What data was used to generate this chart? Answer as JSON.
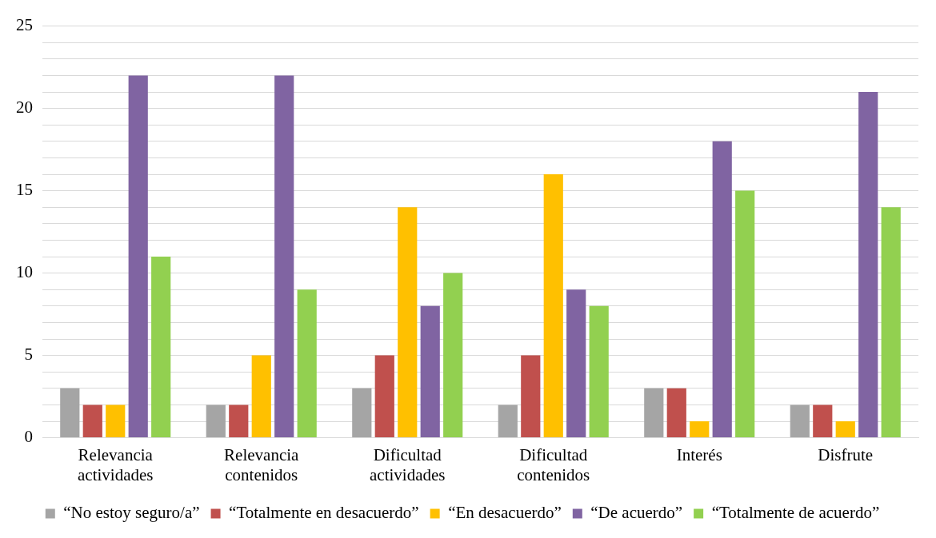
{
  "chart_data": {
    "type": "bar",
    "categories": [
      "Relevancia actividades",
      "Relevancia contenidos",
      "Dificultad actividades",
      "Dificultad contenidos",
      "Interés",
      "Disfrute"
    ],
    "series": [
      {
        "name": "“No estoy seguro/a”",
        "color": "#a5a5a5",
        "values": [
          3,
          2,
          3,
          2,
          3,
          2
        ]
      },
      {
        "name": "“Totalmente en desacuerdo”",
        "color": "#c0504d",
        "values": [
          2,
          2,
          5,
          5,
          3,
          2
        ]
      },
      {
        "name": "“En desacuerdo”",
        "color": "#ffc000",
        "values": [
          2,
          5,
          14,
          16,
          1,
          1
        ]
      },
      {
        "name": "“De acuerdo”",
        "color": "#8064a2",
        "values": [
          22,
          22,
          8,
          9,
          18,
          21
        ]
      },
      {
        "name": "“Totalmente de acuerdo”",
        "color": "#92d050",
        "values": [
          11,
          9,
          10,
          8,
          15,
          14
        ]
      }
    ],
    "ylim": [
      0,
      25
    ],
    "yticks": [
      0,
      {
        "value": 1,
        "label": null
      },
      {
        "value": 2,
        "label": null
      },
      {
        "value": 3,
        "label": null
      },
      {
        "value": 4,
        "label": null
      },
      5,
      {
        "value": 6,
        "label": null
      },
      {
        "value": 7,
        "label": null
      },
      {
        "value": 8,
        "label": null
      },
      {
        "value": 9,
        "label": null
      },
      10,
      {
        "value": 11,
        "label": null
      },
      {
        "value": 12,
        "label": null
      },
      {
        "value": 13,
        "label": null
      },
      {
        "value": 14,
        "label": null
      },
      15,
      {
        "value": 16,
        "label": null
      },
      {
        "value": 17,
        "label": null
      },
      {
        "value": 18,
        "label": null
      },
      {
        "value": 19,
        "label": null
      },
      20,
      {
        "value": 21,
        "label": null
      },
      {
        "value": 22,
        "label": null
      },
      {
        "value": 23,
        "label": null
      },
      {
        "value": 24,
        "label": null
      },
      25
    ],
    "grid": "y",
    "legend": "bottom"
  }
}
